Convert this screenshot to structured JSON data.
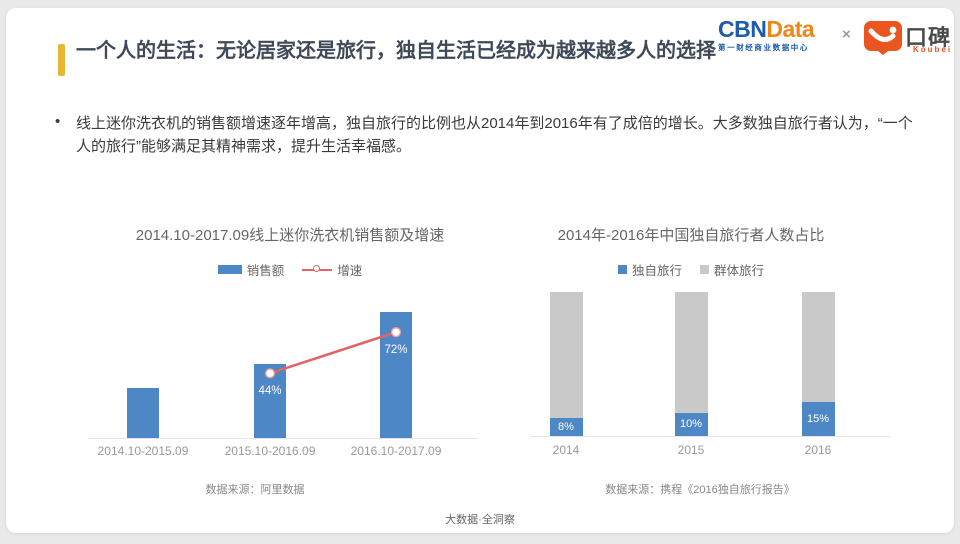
{
  "header": {
    "cbndata_logo": {
      "part_blue": "CBN",
      "part_orange": "Data",
      "subtitle": "第一财经商业数据中心"
    },
    "separator": "×",
    "koubei_logo": {
      "name": "口碑",
      "subtitle": "Koubei"
    }
  },
  "title": "一个人的生活：无论居家还是旅行，独自生活已经成为越来越多人的选择",
  "bullet": {
    "marker": "•",
    "text": "线上迷你洗衣机的销售额增速逐年增高，独自旅行的比例也从2014年到2016年有了成倍的增长。大多数独自旅行者认为，“一个人的旅行”能够满足其精神需求，提升生活幸福感。"
  },
  "colors": {
    "accent_yellow": "#e9b633",
    "bar_blue": "#4e87c5",
    "bar_gray": "#c9c9c9",
    "line_red": "#e06464",
    "cbn_blue": "#1c5ca8",
    "cbn_orange": "#f08519",
    "koubei_orange": "#ea5520"
  },
  "chart_data": [
    {
      "type": "bar",
      "title": "2014.10-2017.09线上迷你洗衣机销售额及增速",
      "categories": [
        "2014.10-2015.09",
        "2015.10-2016.09",
        "2016.10-2017.09"
      ],
      "series": [
        {
          "name": "销售额",
          "type": "bar",
          "color": "#4e87c5",
          "values_relative": [
            40,
            59,
            100
          ]
        },
        {
          "name": "增速",
          "type": "line",
          "color": "#e06464",
          "unit": "%",
          "values": [
            null,
            44,
            72
          ],
          "labels": [
            "",
            "44%",
            "72%"
          ]
        }
      ],
      "legend_position": "top",
      "source": "数据来源：阿里数据"
    },
    {
      "type": "bar",
      "subtype": "stacked-percent",
      "title": "2014年-2016年中国独自旅行者人数占比",
      "categories": [
        "2014",
        "2015",
        "2016"
      ],
      "series": [
        {
          "name": "独自旅行",
          "color": "#4e87c5",
          "unit": "%",
          "values": [
            8,
            10,
            15
          ],
          "labels": [
            "8%",
            "10%",
            "15%"
          ]
        },
        {
          "name": "群体旅行",
          "color": "#c9c9c9",
          "unit": "%",
          "values": [
            92,
            90,
            85
          ]
        }
      ],
      "legend_position": "top",
      "source": "数据来源：携程《2016独自旅行报告》"
    }
  ],
  "footer": "大数据·全洞察"
}
